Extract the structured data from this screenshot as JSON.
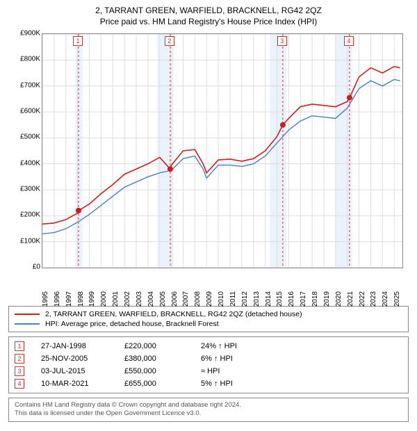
{
  "title": "2, TARRANT GREEN, WARFIELD, BRACKNELL, RG42 2QZ",
  "subtitle": "Price paid vs. HM Land Registry's House Price Index (HPI)",
  "chart": {
    "type": "line",
    "x_years": [
      1995,
      1996,
      1997,
      1998,
      1999,
      2000,
      2001,
      2002,
      2003,
      2004,
      2005,
      2006,
      2007,
      2008,
      2009,
      2010,
      2011,
      2012,
      2013,
      2014,
      2015,
      2016,
      2017,
      2018,
      2019,
      2020,
      2021,
      2022,
      2023,
      2024,
      2025
    ],
    "xlim": [
      1995,
      2025.7
    ],
    "ylim": [
      0,
      900
    ],
    "ytick_step": 100,
    "yticks": [
      "£0",
      "£100K",
      "£200K",
      "£300K",
      "£400K",
      "£500K",
      "£600K",
      "£700K",
      "£800K",
      "£900K"
    ],
    "grid_color": "#dddddd",
    "border_color": "#888888",
    "background_color": "#ffffff",
    "label_fontsize": 10,
    "shaded_bands": [
      {
        "from": 1997.8,
        "to": 1998.4,
        "color": "#eaf2fb"
      },
      {
        "from": 2004.8,
        "to": 2006.2,
        "color": "#eaf2fb"
      },
      {
        "from": 2014.4,
        "to": 2015.8,
        "color": "#eaf2fb"
      },
      {
        "from": 2020.0,
        "to": 2021.4,
        "color": "#eaf2fb"
      }
    ],
    "series": [
      {
        "id": "property",
        "label": "2, TARRANT GREEN, WARFIELD, BRACKNELL, RG42 2QZ (detached house)",
        "color": "#d11c1c",
        "line_width": 1.6,
        "x": [
          1995,
          1996,
          1997,
          1998,
          1998.1,
          1999,
          2000,
          2001,
          2002,
          2003,
          2004,
          2005,
          2005.9,
          2006,
          2007,
          2008,
          2008.7,
          2009,
          2010,
          2011,
          2012,
          2013,
          2014,
          2015,
          2015.5,
          2016,
          2017,
          2018,
          2019,
          2020,
          2021,
          2021.2,
          2022,
          2023,
          2024,
          2025,
          2025.5
        ],
        "y": [
          168,
          172,
          185,
          210,
          220,
          245,
          285,
          320,
          360,
          380,
          400,
          425,
          380,
          395,
          450,
          455,
          400,
          365,
          415,
          418,
          410,
          420,
          450,
          505,
          550,
          575,
          620,
          630,
          625,
          620,
          640,
          655,
          735,
          770,
          750,
          775,
          770
        ]
      },
      {
        "id": "hpi",
        "label": "HPI: Average price, detached house, Bracknell Forest",
        "color": "#4a7fc4",
        "line_width": 1.4,
        "x": [
          1995,
          1996,
          1997,
          1998,
          1999,
          2000,
          2001,
          2002,
          2003,
          2004,
          2005,
          2006,
          2007,
          2008,
          2008.7,
          2009,
          2010,
          2011,
          2012,
          2013,
          2014,
          2015,
          2016,
          2017,
          2018,
          2019,
          2020,
          2021,
          2022,
          2023,
          2024,
          2025,
          2025.5
        ],
        "y": [
          130,
          135,
          150,
          175,
          205,
          240,
          275,
          310,
          330,
          350,
          365,
          375,
          420,
          430,
          380,
          345,
          395,
          395,
          390,
          400,
          430,
          480,
          530,
          565,
          585,
          580,
          575,
          615,
          690,
          720,
          700,
          725,
          720
        ]
      }
    ],
    "sale_points": [
      {
        "x": 1998.08,
        "y": 220,
        "color": "#d11c1c",
        "r": 4
      },
      {
        "x": 2005.9,
        "y": 380,
        "color": "#d11c1c",
        "r": 4
      },
      {
        "x": 2015.5,
        "y": 550,
        "color": "#d11c1c",
        "r": 4
      },
      {
        "x": 2021.19,
        "y": 655,
        "color": "#d11c1c",
        "r": 4
      }
    ],
    "markers": [
      {
        "num": "1",
        "x": 1998.08,
        "dash_color": "#d03030"
      },
      {
        "num": "2",
        "x": 2005.9,
        "dash_color": "#d03030"
      },
      {
        "num": "3",
        "x": 2015.5,
        "dash_color": "#d03030"
      },
      {
        "num": "4",
        "x": 2021.19,
        "dash_color": "#d03030"
      }
    ]
  },
  "events": [
    {
      "num": "1",
      "date": "27-JAN-1998",
      "price": "£220,000",
      "diff": "24% ↑ HPI"
    },
    {
      "num": "2",
      "date": "25-NOV-2005",
      "price": "£380,000",
      "diff": "6% ↑ HPI"
    },
    {
      "num": "3",
      "date": "03-JUL-2015",
      "price": "£550,000",
      "diff": "≈ HPI"
    },
    {
      "num": "4",
      "date": "10-MAR-2021",
      "price": "£655,000",
      "diff": "5% ↑ HPI"
    }
  ],
  "footer": {
    "line1": "Contains HM Land Registry data © Crown copyright and database right 2024.",
    "line2": "This data is licensed under the Open Government Licence v3.0."
  }
}
